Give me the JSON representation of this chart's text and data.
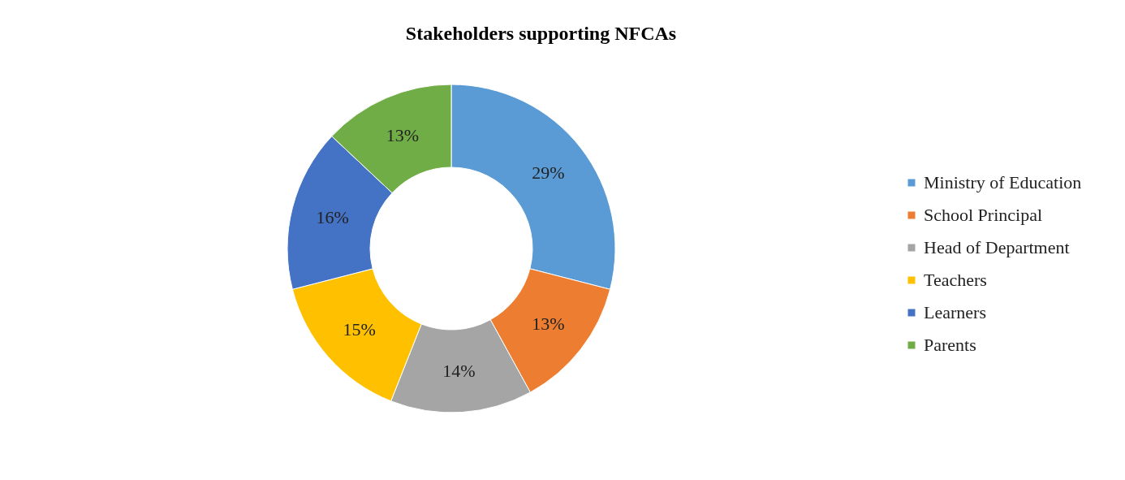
{
  "chart_data": {
    "type": "donut",
    "title": "Stakeholders supporting NFCAs",
    "categories": [
      "Ministry of Education",
      "School Principal",
      "Head of Department",
      "Teachers",
      "Learners",
      "Parents"
    ],
    "values": [
      29,
      13,
      14,
      15,
      16,
      13
    ],
    "colors": [
      "#5b9bd5",
      "#ed7d31",
      "#a5a5a5",
      "#ffc000",
      "#4472c4",
      "#70ad47"
    ],
    "value_labels": [
      "29%",
      "13%",
      "14%",
      "15%",
      "16%",
      "13%"
    ],
    "legend": "right"
  }
}
